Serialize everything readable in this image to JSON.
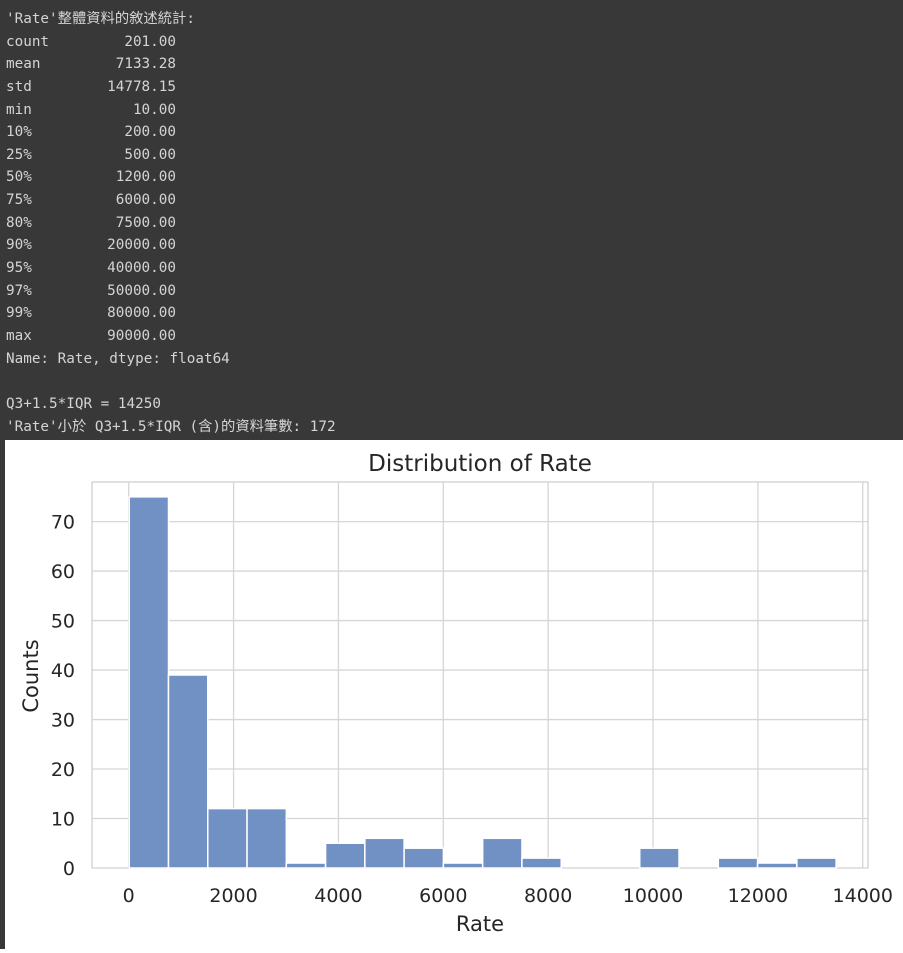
{
  "console": {
    "title_line": "'Rate'整體資料的敘述統計:",
    "stats": [
      {
        "label": "count",
        "value": "201.00"
      },
      {
        "label": "mean",
        "value": "7133.28"
      },
      {
        "label": "std",
        "value": "14778.15"
      },
      {
        "label": "min",
        "value": "10.00"
      },
      {
        "label": "10%",
        "value": "200.00"
      },
      {
        "label": "25%",
        "value": "500.00"
      },
      {
        "label": "50%",
        "value": "1200.00"
      },
      {
        "label": "75%",
        "value": "6000.00"
      },
      {
        "label": "80%",
        "value": "7500.00"
      },
      {
        "label": "90%",
        "value": "20000.00"
      },
      {
        "label": "95%",
        "value": "40000.00"
      },
      {
        "label": "97%",
        "value": "50000.00"
      },
      {
        "label": "99%",
        "value": "80000.00"
      },
      {
        "label": "max",
        "value": "90000.00"
      }
    ],
    "dtype_line": "Name: Rate, dtype: float64",
    "iqr_line": "Q3+1.5*IQR = 14250",
    "count_line": "'Rate'小於 Q3+1.5*IQR (含)的資料筆數: 172"
  },
  "chart_data": {
    "type": "bar",
    "title": "Distribution of Rate",
    "xlabel": "Rate",
    "ylabel": "Counts",
    "xlim": [
      -700,
      14100
    ],
    "ylim": [
      0,
      78
    ],
    "xticks": [
      0,
      2000,
      4000,
      6000,
      8000,
      10000,
      12000,
      14000
    ],
    "yticks": [
      0,
      10,
      20,
      30,
      40,
      50,
      60,
      70
    ],
    "grid": true,
    "bar_color": "#7190c4",
    "bins": [
      {
        "x0": 10,
        "x1": 759,
        "count": 75
      },
      {
        "x0": 759,
        "x1": 1508,
        "count": 39
      },
      {
        "x0": 1508,
        "x1": 2257,
        "count": 12
      },
      {
        "x0": 2257,
        "x1": 3006,
        "count": 12
      },
      {
        "x0": 3006,
        "x1": 3755,
        "count": 1
      },
      {
        "x0": 3755,
        "x1": 4504,
        "count": 5
      },
      {
        "x0": 4504,
        "x1": 5253,
        "count": 6
      },
      {
        "x0": 5253,
        "x1": 6002,
        "count": 4
      },
      {
        "x0": 6002,
        "x1": 6751,
        "count": 1
      },
      {
        "x0": 6751,
        "x1": 7500,
        "count": 6
      },
      {
        "x0": 7500,
        "x1": 8249,
        "count": 2
      },
      {
        "x0": 8249,
        "x1": 8998,
        "count": 0
      },
      {
        "x0": 8998,
        "x1": 9747,
        "count": 0
      },
      {
        "x0": 9747,
        "x1": 10496,
        "count": 4
      },
      {
        "x0": 10496,
        "x1": 11245,
        "count": 0
      },
      {
        "x0": 11245,
        "x1": 11994,
        "count": 2
      },
      {
        "x0": 11994,
        "x1": 12743,
        "count": 1
      },
      {
        "x0": 12743,
        "x1": 13492,
        "count": 2
      }
    ]
  }
}
